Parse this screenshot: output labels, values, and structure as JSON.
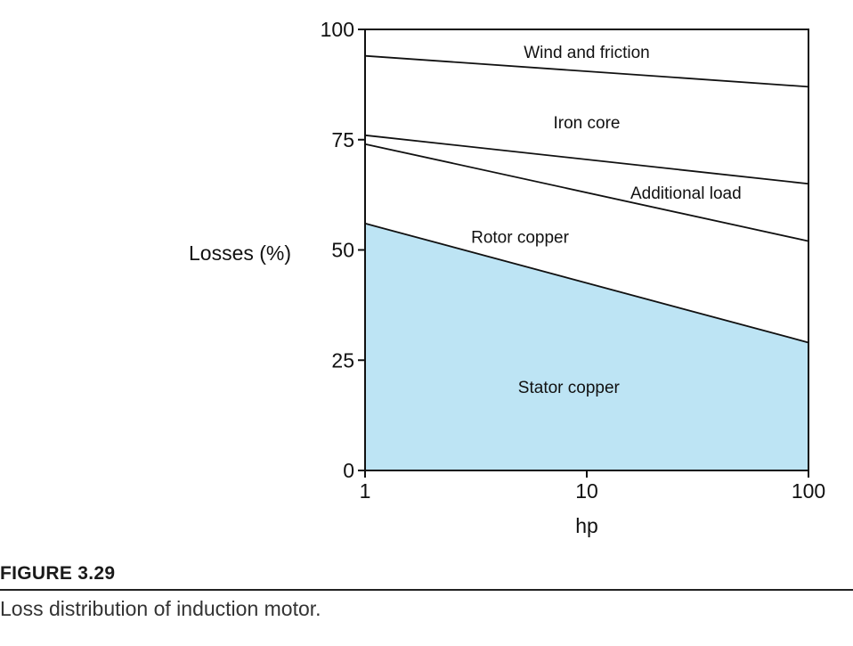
{
  "chart_data": {
    "type": "area",
    "x_scale": "log",
    "xlabel": "hp",
    "ylabel": "Losses (%)",
    "xlim": [
      1,
      100
    ],
    "ylim": [
      0,
      100
    ],
    "x_ticks": [
      1,
      10,
      100
    ],
    "x_tick_labels": [
      "1",
      "10",
      "100"
    ],
    "y_ticks": [
      0,
      25,
      50,
      75,
      100
    ],
    "y_tick_labels": [
      "0",
      "25",
      "50",
      "75",
      "100"
    ],
    "boundaries": [
      {
        "x": [
          1,
          100
        ],
        "y": [
          56,
          29
        ]
      },
      {
        "x": [
          1,
          100
        ],
        "y": [
          74,
          52
        ]
      },
      {
        "x": [
          1,
          100
        ],
        "y": [
          76,
          65
        ]
      },
      {
        "x": [
          1,
          100
        ],
        "y": [
          94,
          87
        ]
      }
    ],
    "regions": [
      {
        "name": "Stator copper",
        "from": [
          0,
          0
        ],
        "to": [
          56,
          29
        ],
        "fill": "#bde4f4"
      },
      {
        "name": "Rotor copper",
        "from": [
          56,
          29
        ],
        "to": [
          74,
          52
        ],
        "fill": "#ffffff"
      },
      {
        "name": "Additional load",
        "from": [
          74,
          52
        ],
        "to": [
          76,
          65
        ],
        "fill": "#ffffff"
      },
      {
        "name": "Iron core",
        "from": [
          76,
          65
        ],
        "to": [
          94,
          87
        ],
        "fill": "#ffffff"
      },
      {
        "name": "Wind and friction",
        "from": [
          94,
          87
        ],
        "to": [
          100,
          100
        ],
        "fill": "#ffffff"
      }
    ],
    "annotations": [
      {
        "text": "Wind and friction",
        "x": 10,
        "y": 95
      },
      {
        "text": "Iron core",
        "x": 10,
        "y": 79
      },
      {
        "text": "Additional load",
        "x": 28,
        "y": 63
      },
      {
        "text": "Rotor copper",
        "x": 5,
        "y": 53
      },
      {
        "text": "Stator copper",
        "x": 8.3,
        "y": 19
      }
    ],
    "colors": {
      "fill": "#bde4f4",
      "line": "#111111"
    }
  },
  "figure": {
    "label": "FIGURE 3.29",
    "caption": "Loss distribution of induction motor."
  }
}
